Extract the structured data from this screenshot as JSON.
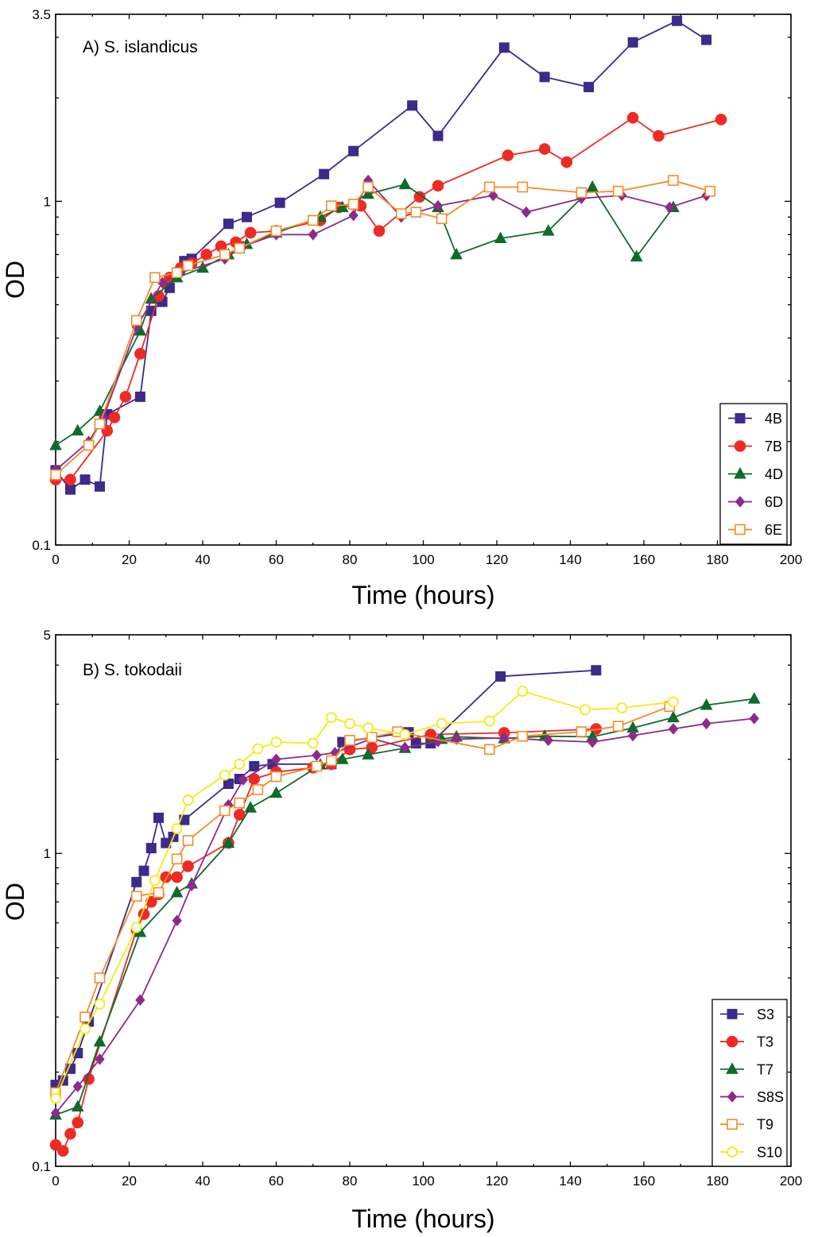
{
  "chart_data": [
    {
      "type": "line",
      "title": "A) S. islandicus",
      "xlabel": "Time (hours)",
      "ylabel": "OD",
      "yscale": "log",
      "xlim": [
        0,
        200
      ],
      "ylim": [
        0.1,
        3.5
      ],
      "xticks": [
        0,
        20,
        40,
        60,
        80,
        100,
        120,
        140,
        160,
        180,
        200
      ],
      "xtick_labels": [
        "0",
        "20",
        "40",
        "60",
        "80",
        "100",
        "120",
        "140",
        "160",
        "180",
        "200"
      ],
      "yticks": [
        0.1,
        1,
        3.5
      ],
      "ytick_labels": [
        "0.1",
        "1",
        "3.5"
      ],
      "legend_position": "bottom-right",
      "series": [
        {
          "name": "4B",
          "color": "#3d2a8a",
          "marker": "square-filled",
          "x": [
            0,
            4,
            8,
            12,
            14,
            23,
            26,
            29,
            31,
            33,
            35,
            37,
            47,
            52,
            61,
            73,
            81,
            97,
            104,
            122,
            133,
            145,
            157,
            169,
            177
          ],
          "y": [
            0.165,
            0.145,
            0.155,
            0.148,
            0.24,
            0.27,
            0.48,
            0.51,
            0.56,
            0.62,
            0.67,
            0.68,
            0.86,
            0.9,
            0.99,
            1.2,
            1.4,
            1.9,
            1.55,
            2.8,
            2.3,
            2.15,
            2.9,
            3.35,
            2.95
          ]
        },
        {
          "name": "7B",
          "color": "#ee2a24",
          "marker": "circle-filled",
          "x": [
            0,
            4,
            14,
            16,
            19,
            23,
            28,
            31,
            34,
            37,
            41,
            45,
            49,
            53,
            60,
            72,
            77,
            83,
            88,
            99,
            104,
            123,
            133,
            139,
            157,
            164,
            181
          ],
          "y": [
            0.155,
            0.155,
            0.215,
            0.235,
            0.27,
            0.36,
            0.53,
            0.6,
            0.64,
            0.66,
            0.7,
            0.74,
            0.76,
            0.81,
            0.82,
            0.88,
            0.96,
            0.97,
            0.82,
            1.03,
            1.11,
            1.36,
            1.42,
            1.3,
            1.75,
            1.55,
            1.73
          ]
        },
        {
          "name": "4D",
          "color": "#0f6b2c",
          "marker": "triangle-filled",
          "x": [
            0,
            6,
            12,
            23,
            26,
            33,
            40,
            47,
            52,
            60,
            72,
            78,
            85,
            95,
            104,
            109,
            121,
            134,
            146,
            158,
            168
          ],
          "y": [
            0.195,
            0.215,
            0.245,
            0.42,
            0.52,
            0.6,
            0.64,
            0.7,
            0.75,
            0.81,
            0.9,
            0.96,
            1.05,
            1.12,
            0.96,
            0.7,
            0.78,
            0.82,
            1.1,
            0.69,
            0.96
          ]
        },
        {
          "name": "6D",
          "color": "#8e2a8c",
          "marker": "diamond-filled",
          "x": [
            0,
            9,
            13,
            22,
            29,
            34,
            46,
            51,
            60,
            70,
            81,
            85,
            94,
            104,
            119,
            128,
            143,
            154,
            167,
            177
          ],
          "y": [
            0.165,
            0.2,
            0.235,
            0.43,
            0.58,
            0.62,
            0.68,
            0.74,
            0.8,
            0.8,
            0.91,
            1.15,
            0.9,
            0.97,
            1.04,
            0.93,
            1.02,
            1.04,
            0.96,
            1.04
          ]
        },
        {
          "name": "6E",
          "color": "#f28c28",
          "marker": "square-open",
          "x": [
            0,
            9,
            12,
            22,
            27,
            33,
            36,
            46,
            50,
            60,
            70,
            75,
            81,
            85,
            94,
            98,
            105,
            118,
            127,
            143,
            153,
            168,
            178
          ],
          "y": [
            0.16,
            0.195,
            0.225,
            0.45,
            0.6,
            0.62,
            0.65,
            0.7,
            0.73,
            0.82,
            0.88,
            0.97,
            0.98,
            1.1,
            0.92,
            0.93,
            0.89,
            1.1,
            1.1,
            1.06,
            1.07,
            1.15,
            1.07
          ]
        }
      ]
    },
    {
      "type": "line",
      "title": "B) S. tokodaii",
      "xlabel": "Time (hours)",
      "ylabel": "OD",
      "yscale": "log",
      "xlim": [
        0,
        200
      ],
      "ylim": [
        0.1,
        5
      ],
      "xticks": [
        0,
        20,
        40,
        60,
        80,
        100,
        120,
        140,
        160,
        180,
        200
      ],
      "xtick_labels": [
        "0",
        "20",
        "40",
        "60",
        "80",
        "100",
        "120",
        "140",
        "160",
        "180",
        "200"
      ],
      "yticks": [
        0.1,
        1,
        5
      ],
      "ytick_labels": [
        "0.1",
        "1",
        "5"
      ],
      "legend_position": "bottom-right",
      "series": [
        {
          "name": "S3",
          "color": "#3d2a8a",
          "marker": "square-filled",
          "x": [
            0,
            2,
            4,
            6,
            9,
            22,
            24,
            26,
            28,
            30,
            32,
            35,
            47,
            50,
            54,
            59,
            75,
            78,
            96,
            98,
            102,
            121,
            147
          ],
          "y": [
            0.182,
            0.188,
            0.205,
            0.23,
            0.29,
            0.81,
            0.88,
            1.04,
            1.3,
            1.08,
            1.13,
            1.28,
            1.67,
            1.73,
            1.9,
            1.93,
            1.93,
            2.27,
            2.44,
            2.25,
            2.25,
            3.68,
            3.85
          ]
        },
        {
          "name": "T3",
          "color": "#ee2a24",
          "marker": "circle-filled",
          "x": [
            0,
            2,
            4,
            6,
            9,
            22,
            24,
            26,
            28,
            30,
            33,
            36,
            47,
            50,
            54,
            60,
            70,
            75,
            80,
            86,
            102,
            122,
            147
          ],
          "y": [
            0.117,
            0.112,
            0.127,
            0.138,
            0.19,
            0.57,
            0.64,
            0.7,
            0.74,
            0.84,
            0.84,
            0.91,
            1.08,
            1.33,
            1.73,
            1.82,
            1.88,
            1.93,
            2.15,
            2.18,
            2.4,
            2.43,
            2.5
          ]
        },
        {
          "name": "T7",
          "color": "#0f6b2c",
          "marker": "triangle-filled",
          "x": [
            0,
            6,
            12,
            23,
            33,
            37,
            47,
            53,
            60,
            72,
            78,
            85,
            95,
            105,
            109,
            122,
            133,
            146,
            157,
            168,
            177,
            190
          ],
          "y": [
            0.146,
            0.155,
            0.25,
            0.56,
            0.75,
            0.8,
            1.08,
            1.4,
            1.56,
            1.92,
            2.0,
            2.07,
            2.17,
            2.32,
            2.36,
            2.33,
            2.37,
            2.36,
            2.52,
            2.72,
            2.98,
            3.12
          ]
        },
        {
          "name": "S8S",
          "color": "#8e2a8c",
          "marker": "diamond-filled",
          "x": [
            0,
            6,
            12,
            23,
            33,
            37,
            47,
            51,
            60,
            71,
            76,
            86,
            95,
            104,
            109,
            122,
            134,
            146,
            157,
            168,
            177,
            190
          ],
          "y": [
            0.148,
            0.18,
            0.22,
            0.34,
            0.61,
            0.79,
            1.43,
            1.72,
            2.0,
            2.06,
            2.1,
            2.33,
            2.18,
            2.28,
            2.32,
            2.34,
            2.3,
            2.27,
            2.38,
            2.5,
            2.6,
            2.7
          ]
        },
        {
          "name": "T9",
          "color": "#f28c28",
          "marker": "square-open",
          "x": [
            0,
            8,
            12,
            22,
            28,
            33,
            36,
            46,
            50,
            55,
            60,
            71,
            75,
            80,
            86,
            93,
            118,
            127,
            143,
            153,
            167
          ],
          "y": [
            0.172,
            0.3,
            0.4,
            0.73,
            0.75,
            0.96,
            1.1,
            1.37,
            1.45,
            1.6,
            1.76,
            1.9,
            1.98,
            2.3,
            2.35,
            2.45,
            2.15,
            2.37,
            2.45,
            2.55,
            2.95
          ]
        },
        {
          "name": "S10",
          "color": "#f5ea16",
          "marker": "circle-open",
          "x": [
            0,
            8,
            12,
            22,
            27,
            33,
            36,
            46,
            50,
            55,
            60,
            70,
            75,
            80,
            85,
            95,
            105,
            118,
            127,
            144,
            154,
            168
          ],
          "y": [
            0.165,
            0.275,
            0.33,
            0.58,
            0.82,
            1.2,
            1.48,
            1.78,
            1.93,
            2.16,
            2.27,
            2.25,
            2.72,
            2.6,
            2.52,
            2.4,
            2.6,
            2.65,
            3.3,
            2.88,
            2.92,
            3.05
          ]
        }
      ]
    }
  ]
}
